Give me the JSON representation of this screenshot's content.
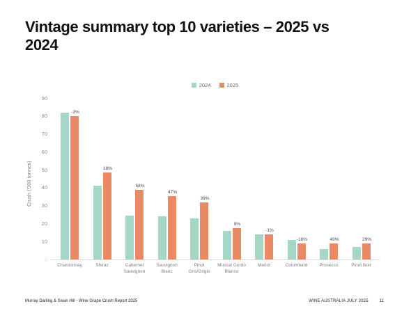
{
  "page": {
    "title": "Vintage summary top 10 varieties – 2025 vs 2024",
    "footer_left": "Murray Darling & Swan Hill - Wine Grape Crush Report 2025",
    "footer_right": "WINE AUSTRALIA JULY 2025",
    "page_number": "11"
  },
  "colors": {
    "series_2024": "#a5d7c4",
    "series_2025": "#e88a66",
    "axis_line": "#d9d9d9"
  },
  "chart_data": {
    "type": "bar",
    "title": "Vintage summary top 10 varieties – 2025 vs 2024",
    "xlabel": "",
    "ylabel": "Crush ('000 tonnes)",
    "ylim": [
      0,
      90
    ],
    "yticks": [
      0,
      10,
      20,
      30,
      40,
      50,
      60,
      70,
      80,
      90
    ],
    "grid": false,
    "legend_position": "top-center",
    "categories": [
      "Chardonnay",
      "Shiraz",
      "Cabernet Sauvignon",
      "Sauvignon Blanc",
      "Pinot Gris/Grigio",
      "Muscat Gordo Blanco",
      "Merlot",
      "Colombard",
      "Prosecco",
      "Pinot Noir"
    ],
    "series": [
      {
        "name": "2024",
        "color": "#a5d7c4",
        "values": [
          82,
          41,
          24.5,
          24,
          23,
          16,
          14,
          11,
          6,
          6.8
        ]
      },
      {
        "name": "2025",
        "color": "#e88a66",
        "values": [
          79.8,
          48.5,
          38.7,
          35.4,
          32,
          17.5,
          13.9,
          9,
          9,
          8.8
        ]
      }
    ],
    "pct_change_labels": [
      "-3%",
      "18%",
      "58%",
      "47%",
      "39%",
      "9%",
      "-1%",
      "-18%",
      "49%",
      "29%"
    ]
  }
}
